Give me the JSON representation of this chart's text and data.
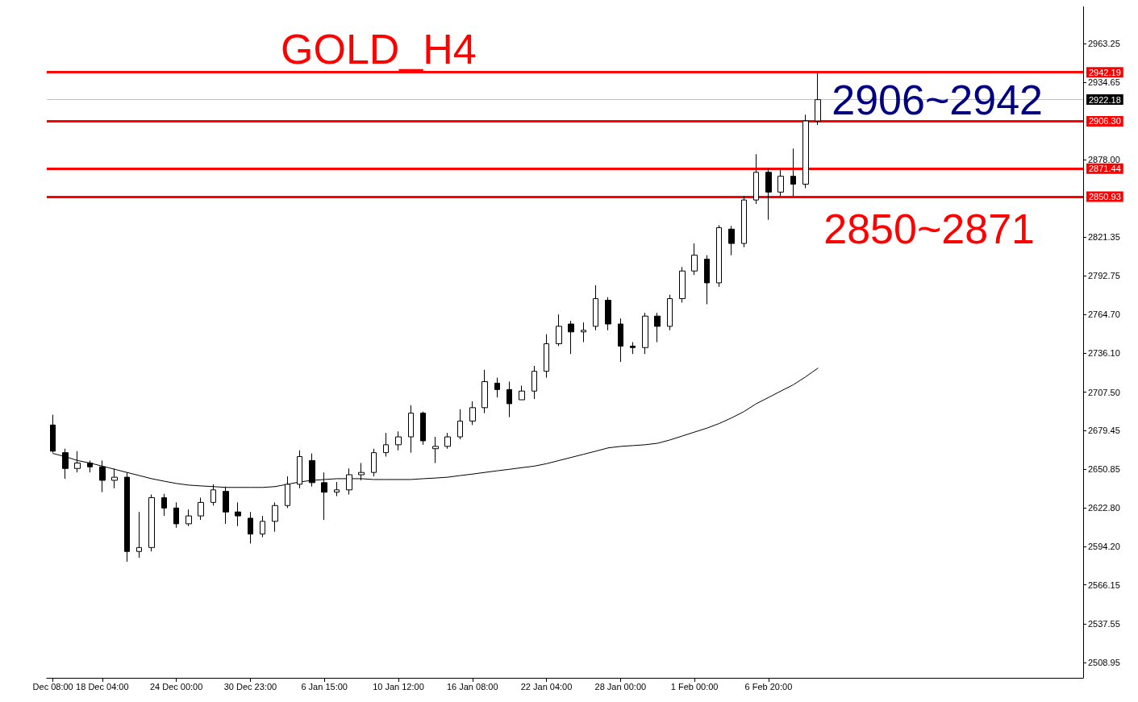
{
  "chart_data": {
    "type": "candlestick",
    "title": "GOLD_H4",
    "categories": [
      "Dec 08:00",
      null,
      null,
      null,
      "18 Dec 04:00",
      null,
      null,
      null,
      null,
      null,
      "24 Dec 00:00",
      null,
      null,
      null,
      null,
      null,
      "30 Dec 23:00",
      null,
      null,
      null,
      null,
      null,
      "6 Jan 15:00",
      null,
      null,
      null,
      null,
      null,
      "10 Jan 12:00",
      null,
      null,
      null,
      null,
      null,
      "16 Jan 08:00",
      null,
      null,
      null,
      null,
      null,
      "22 Jan 04:00",
      null,
      null,
      null,
      null,
      null,
      "28 Jan 00:00",
      null,
      null,
      null,
      null,
      null,
      "1 Feb 00:00",
      null,
      null,
      null,
      null,
      null,
      "6 Feb 20:00",
      null,
      null,
      null,
      null,
      null,
      null,
      null,
      null,
      null,
      null,
      null,
      null,
      null,
      null,
      null,
      null,
      null,
      null,
      null,
      null,
      null,
      null,
      null,
      null,
      null
    ],
    "ohlc": [
      [
        2683.4,
        2690.9,
        2663.1,
        2664.2
      ],
      [
        2663.1,
        2666.0,
        2644.0,
        2651.5
      ],
      [
        2651.5,
        2664.2,
        2648.6,
        2655.5
      ],
      [
        2655.5,
        2657.3,
        2648.6,
        2652.7
      ],
      [
        2652.7,
        2657.3,
        2634.1,
        2642.8
      ],
      [
        2642.8,
        2651.5,
        2637.0,
        2645.1
      ],
      [
        2645.1,
        2648.6,
        2583.1,
        2590.6
      ],
      [
        2590.6,
        2619.6,
        2586.0,
        2593.5
      ],
      [
        2593.5,
        2632.4,
        2590.6,
        2630.1
      ],
      [
        2630.1,
        2632.9,
        2616.7,
        2622.5
      ],
      [
        2622.5,
        2626.6,
        2608.0,
        2610.9
      ],
      [
        2610.9,
        2621.4,
        2609.2,
        2616.7
      ],
      [
        2616.7,
        2630.1,
        2613.8,
        2626.6
      ],
      [
        2626.6,
        2639.9,
        2624.3,
        2635.8
      ],
      [
        2634.7,
        2638.2,
        2610.9,
        2619.6
      ],
      [
        2619.6,
        2626.6,
        2609.2,
        2616.7
      ],
      [
        2615.0,
        2619.6,
        2596.4,
        2603.4
      ],
      [
        2603.4,
        2616.7,
        2601.1,
        2612.7
      ],
      [
        2612.7,
        2626.6,
        2605.1,
        2624.3
      ],
      [
        2624.3,
        2645.7,
        2622.5,
        2639.9
      ],
      [
        2639.9,
        2664.8,
        2637.0,
        2660.2
      ],
      [
        2657.3,
        2662.5,
        2638.2,
        2641.1
      ],
      [
        2641.1,
        2648.6,
        2613.8,
        2634.1
      ],
      [
        2634.1,
        2641.6,
        2631.2,
        2635.8
      ],
      [
        2635.8,
        2651.5,
        2632.4,
        2646.9
      ],
      [
        2646.9,
        2655.5,
        2642.8,
        2648.6
      ],
      [
        2648.6,
        2666.0,
        2645.7,
        2663.1
      ],
      [
        2663.1,
        2677.6,
        2660.2,
        2668.9
      ],
      [
        2668.9,
        2678.7,
        2664.8,
        2674.7
      ],
      [
        2674.7,
        2697.9,
        2663.1,
        2692.1
      ],
      [
        2692.1,
        2693.2,
        2668.9,
        2671.8
      ],
      [
        2666.0,
        2674.7,
        2655.5,
        2667.7
      ],
      [
        2667.7,
        2677.6,
        2666.0,
        2674.7
      ],
      [
        2674.7,
        2695.0,
        2672.9,
        2686.3
      ],
      [
        2686.3,
        2700.7,
        2683.4,
        2696.1
      ],
      [
        2696.1,
        2723.9,
        2692.1,
        2715.2
      ],
      [
        2714.1,
        2718.1,
        2703.6,
        2709.4
      ],
      [
        2709.4,
        2715.2,
        2689.2,
        2699.0
      ],
      [
        2701.9,
        2712.3,
        2701.9,
        2708.3
      ],
      [
        2708.3,
        2726.8,
        2702.5,
        2722.8
      ],
      [
        2722.8,
        2750.0,
        2718.1,
        2743.0
      ],
      [
        2743.0,
        2764.5,
        2741.3,
        2755.8
      ],
      [
        2757.5,
        2759.9,
        2735.5,
        2751.7
      ],
      [
        2751.7,
        2758.7,
        2744.2,
        2752.9
      ],
      [
        2755.8,
        2785.9,
        2752.9,
        2776.1
      ],
      [
        2774.9,
        2777.2,
        2752.9,
        2757.5
      ],
      [
        2757.5,
        2761.6,
        2729.7,
        2741.3
      ],
      [
        2741.3,
        2744.2,
        2735.5,
        2740.2
      ],
      [
        2740.2,
        2765.7,
        2735.5,
        2763.3
      ],
      [
        2763.3,
        2765.7,
        2744.2,
        2755.8
      ],
      [
        2755.8,
        2779.0,
        2752.9,
        2776.1
      ],
      [
        2776.1,
        2799.3,
        2773.2,
        2796.4
      ],
      [
        2796.4,
        2816.6,
        2793.5,
        2808.0
      ],
      [
        2805.1,
        2808.0,
        2772.0,
        2787.7
      ],
      [
        2787.7,
        2830.0,
        2784.8,
        2828.2
      ],
      [
        2827.1,
        2829.4,
        2808.0,
        2816.6
      ],
      [
        2816.6,
        2851.4,
        2813.8,
        2848.5
      ],
      [
        2848.5,
        2882.1,
        2845.6,
        2868.8
      ],
      [
        2868.8,
        2871.7,
        2834.0,
        2854.3
      ],
      [
        2854.3,
        2871.7,
        2851.4,
        2865.9
      ],
      [
        2865.9,
        2886.2,
        2851.4,
        2860.1
      ],
      [
        2860.1,
        2911.1,
        2857.2,
        2906.5
      ],
      [
        2906.5,
        2941.8,
        2903.6,
        2922.1
      ],
      null,
      null,
      null,
      null,
      null,
      null,
      null,
      null,
      null,
      null,
      null,
      null,
      null,
      null,
      null,
      null,
      null,
      null,
      null,
      null,
      null
    ],
    "series": [
      {
        "type": "line",
        "color": "#000000",
        "values": [
          2662.5,
          2660.2,
          2657.3,
          2655.5,
          2653.2,
          2650.9,
          2648.6,
          2646.3,
          2644.0,
          2642.2,
          2640.5,
          2639.3,
          2638.7,
          2638.2,
          2637.6,
          2637.6,
          2637.6,
          2637.6,
          2638.2,
          2639.9,
          2641.6,
          2642.8,
          2643.4,
          2644.0,
          2644.0,
          2644.0,
          2643.4,
          2643.4,
          2643.4,
          2643.4,
          2644.0,
          2644.5,
          2645.1,
          2646.3,
          2647.4,
          2648.6,
          2649.8,
          2650.9,
          2652.1,
          2653.2,
          2655.0,
          2657.3,
          2659.6,
          2661.9,
          2664.2,
          2666.6,
          2667.7,
          2668.3,
          2668.9,
          2670.0,
          2672.4,
          2675.3,
          2678.2,
          2681.1,
          2684.5,
          2688.6,
          2693.2,
          2699.0,
          2703.6,
          2708.3,
          2712.9,
          2718.7,
          2725.1,
          null,
          null,
          null,
          null,
          null,
          null,
          null,
          null,
          null,
          null,
          null,
          null,
          null,
          null,
          null,
          null,
          null,
          null,
          null,
          null,
          null
        ]
      }
    ],
    "ylim": [
      2497.9,
      2990.5
    ],
    "yticks": [
      2508.95,
      2537.55,
      2566.15,
      {
        "value": 2594.2,
        "label": "2594.20"
      },
      {
        "value": 2622.8,
        "label": "2622.80"
      },
      2650.85,
      2679.45,
      {
        "value": 2707.5,
        "label": "2707.50"
      },
      {
        "value": 2736.1,
        "label": "2736.10"
      },
      {
        "value": 2764.7,
        "label": "2764.70"
      },
      2792.75,
      2821.35,
      {
        "value": 2878,
        "label": "2878.00"
      },
      2934.65,
      2963.25
    ],
    "ref_lines": [
      {
        "axis": "y",
        "value": 2942.19,
        "label": "2942.19",
        "color": "#ff0000"
      },
      {
        "axis": "y",
        "value": 2922.18,
        "label": "2922.18",
        "color": "#c0c0c0"
      },
      {
        "axis": "y",
        "value": 2906.3,
        "label": "2906.30",
        "color": "#ff0000"
      },
      {
        "axis": "y",
        "value": 2871.44,
        "label": "2871.44",
        "color": "#ff0000"
      },
      {
        "axis": "y",
        "value": 2850.93,
        "label": "2850.93",
        "color": "#ff0000"
      }
    ],
    "annotations": [
      "2906~2942",
      "2850~2871"
    ]
  }
}
